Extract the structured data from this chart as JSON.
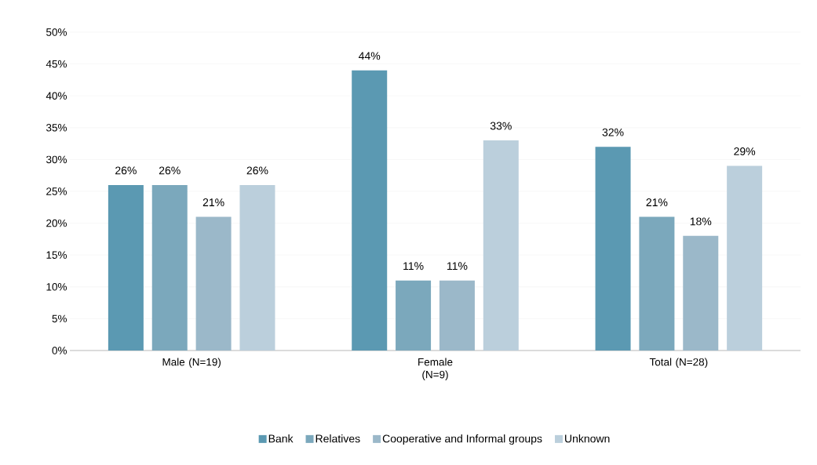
{
  "chart_data": {
    "type": "bar",
    "categories": [
      "Male (N=19)",
      "Female (N=9)",
      "Total (N=28)"
    ],
    "series": [
      {
        "name": "Bank",
        "color": "#5b99b2",
        "values": [
          26,
          44,
          32
        ],
        "value_labels": [
          "26%",
          "44%",
          "32%"
        ]
      },
      {
        "name": "Relatives",
        "color": "#7ba8bc",
        "values": [
          26,
          11,
          21
        ],
        "value_labels": [
          "26%",
          "11%",
          "21%"
        ]
      },
      {
        "name": "Cooperative and Informal groups",
        "color": "#9bb8c9",
        "values": [
          21,
          11,
          18
        ],
        "value_labels": [
          "21%",
          "11%",
          "18%"
        ]
      },
      {
        "name": "Unknown",
        "color": "#bbcfdc",
        "values": [
          26,
          33,
          29
        ],
        "value_labels": [
          "26%",
          "33%",
          "29%"
        ]
      }
    ],
    "ylim": [
      0,
      50
    ],
    "yticks": [
      {
        "value": 0,
        "label": "0%"
      },
      {
        "value": 5,
        "label": "5%"
      },
      {
        "value": 10,
        "label": "10%"
      },
      {
        "value": 15,
        "label": "15%"
      },
      {
        "value": 20,
        "label": "20%"
      },
      {
        "value": 25,
        "label": "25%"
      },
      {
        "value": 30,
        "label": "30%"
      },
      {
        "value": 35,
        "label": "35%"
      },
      {
        "value": 40,
        "label": "40%"
      },
      {
        "value": 45,
        "label": "45%"
      },
      {
        "value": 50,
        "label": "50%"
      }
    ],
    "grid": "y",
    "legend": "bottom"
  }
}
